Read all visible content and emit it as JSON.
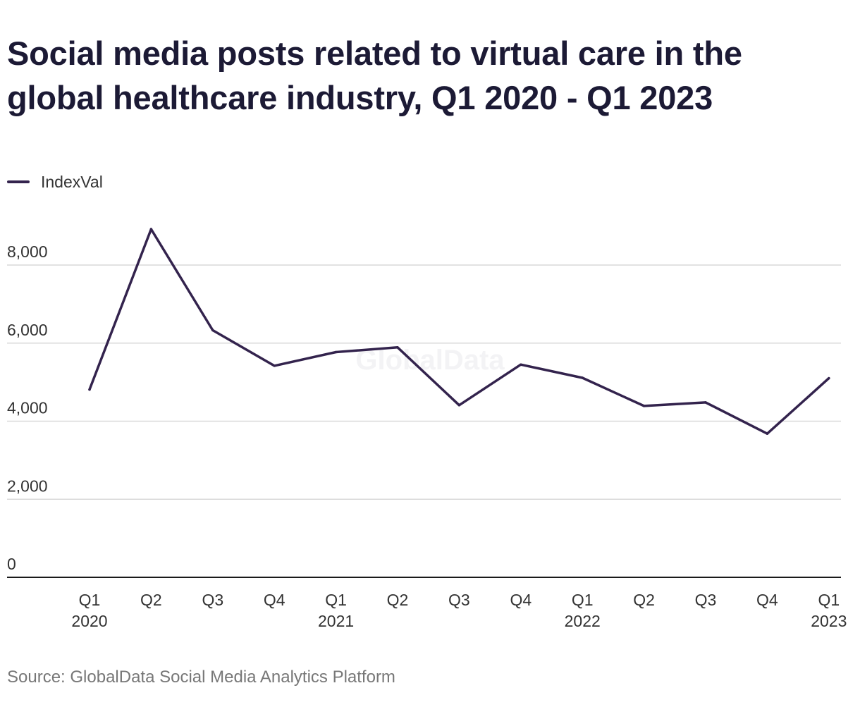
{
  "title": "Social media posts related to virtual care in the global healthcare industry, Q1 2020 - Q1 2023",
  "source": "Source: GlobalData Social Media Analytics Platform",
  "watermark": "GlobalData",
  "colors": {
    "series": "#33234d",
    "grid": "#d9d9d9",
    "axis": "#1a1a1a",
    "text": "#333333",
    "title": "#1c1a35",
    "source": "#777777"
  },
  "chart_data": {
    "type": "line",
    "title": "Social media posts related to virtual care in the global healthcare industry, Q1 2020 - Q1 2023",
    "xlabel": "",
    "ylabel": "",
    "ylim": [
      0,
      8000
    ],
    "yticks": [
      0,
      2000,
      4000,
      6000,
      8000
    ],
    "ytick_labels": [
      "0",
      "2,000",
      "4,000",
      "6,000",
      "8,000"
    ],
    "grid": true,
    "legend": "top-left",
    "categories": [
      [
        "Q1",
        "2020"
      ],
      [
        "Q2"
      ],
      [
        "Q3"
      ],
      [
        "Q4"
      ],
      [
        "Q1",
        "2021"
      ],
      [
        "Q2"
      ],
      [
        "Q3"
      ],
      [
        "Q4"
      ],
      [
        "Q1",
        "2022"
      ],
      [
        "Q2"
      ],
      [
        "Q3"
      ],
      [
        "Q4"
      ],
      [
        "Q1",
        "2023"
      ]
    ],
    "series": [
      {
        "name": "IndexVal",
        "values": [
          4810,
          8920,
          6330,
          5420,
          5770,
          5890,
          4410,
          5450,
          5110,
          4390,
          4480,
          3680,
          5100
        ]
      }
    ]
  }
}
